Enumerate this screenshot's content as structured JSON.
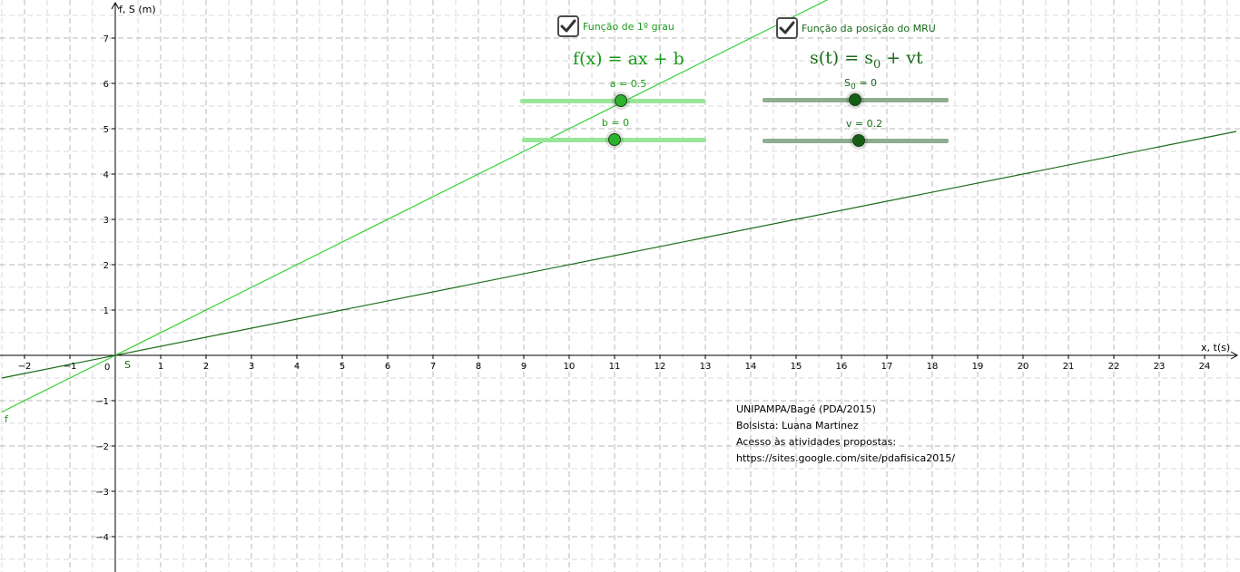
{
  "axes": {
    "x_label": "x, t(s)",
    "y_label": "f, S (m)",
    "origin_label": "0",
    "x_ticks": [
      "−2",
      "−1",
      "1",
      "2",
      "3",
      "4",
      "5",
      "6",
      "7",
      "8",
      "9",
      "10",
      "11",
      "12",
      "13",
      "14",
      "15",
      "16",
      "17",
      "18",
      "19",
      "20",
      "21",
      "22",
      "23",
      "24"
    ],
    "y_ticks": [
      "7",
      "6",
      "5",
      "4",
      "3",
      "2",
      "1",
      "−1",
      "−2",
      "−3",
      "−4"
    ]
  },
  "lines": {
    "f_label": "f",
    "s_label": "S"
  },
  "controls": {
    "check1_label": "Função de 1º grau",
    "check2_label": "Função da posição do MRU",
    "formula1": "f(x) = ax + b",
    "formula2_lhs": "s(t) = s",
    "formula2_sub": "0",
    "formula2_rhs": " + vt",
    "slider_a_label": "a = 0.5",
    "slider_b_label": "b = 0",
    "slider_s0_main": "S",
    "slider_s0_sub": "0",
    "slider_s0_rest": " = 0",
    "slider_v_label": "v = 0.2"
  },
  "credits": {
    "line1": "UNIPAMPA/Bagé (PDA/2015)",
    "line2": "Bolsista: Luana Martinez",
    "line3": "Acesso às atividades propostas:",
    "line4": "https://sites.google.com/site/pdafisica2015/"
  },
  "colors": {
    "f_line": "#33cc33",
    "s_line": "#1a6b1a",
    "slider_light": "#99e699",
    "slider_dark": "#8fae8f",
    "knob_light": "#33cc33",
    "knob_dark": "#1a6b1a",
    "grid": "#c0c0c0"
  },
  "chart_data": {
    "type": "line",
    "xlabel": "x, t(s)",
    "ylabel": "f, S (m)",
    "xlim": [
      -2.5,
      24.7
    ],
    "ylim": [
      -4.7,
      7.8
    ],
    "grid": true,
    "series": [
      {
        "name": "f",
        "slope": 0.5,
        "intercept": 0,
        "color": "#33cc33"
      },
      {
        "name": "S",
        "slope": 0.2,
        "intercept": 0,
        "color": "#1a6b1a"
      }
    ],
    "sliders": {
      "a": 0.5,
      "b": 0,
      "S0": 0,
      "v": 0.2
    }
  }
}
